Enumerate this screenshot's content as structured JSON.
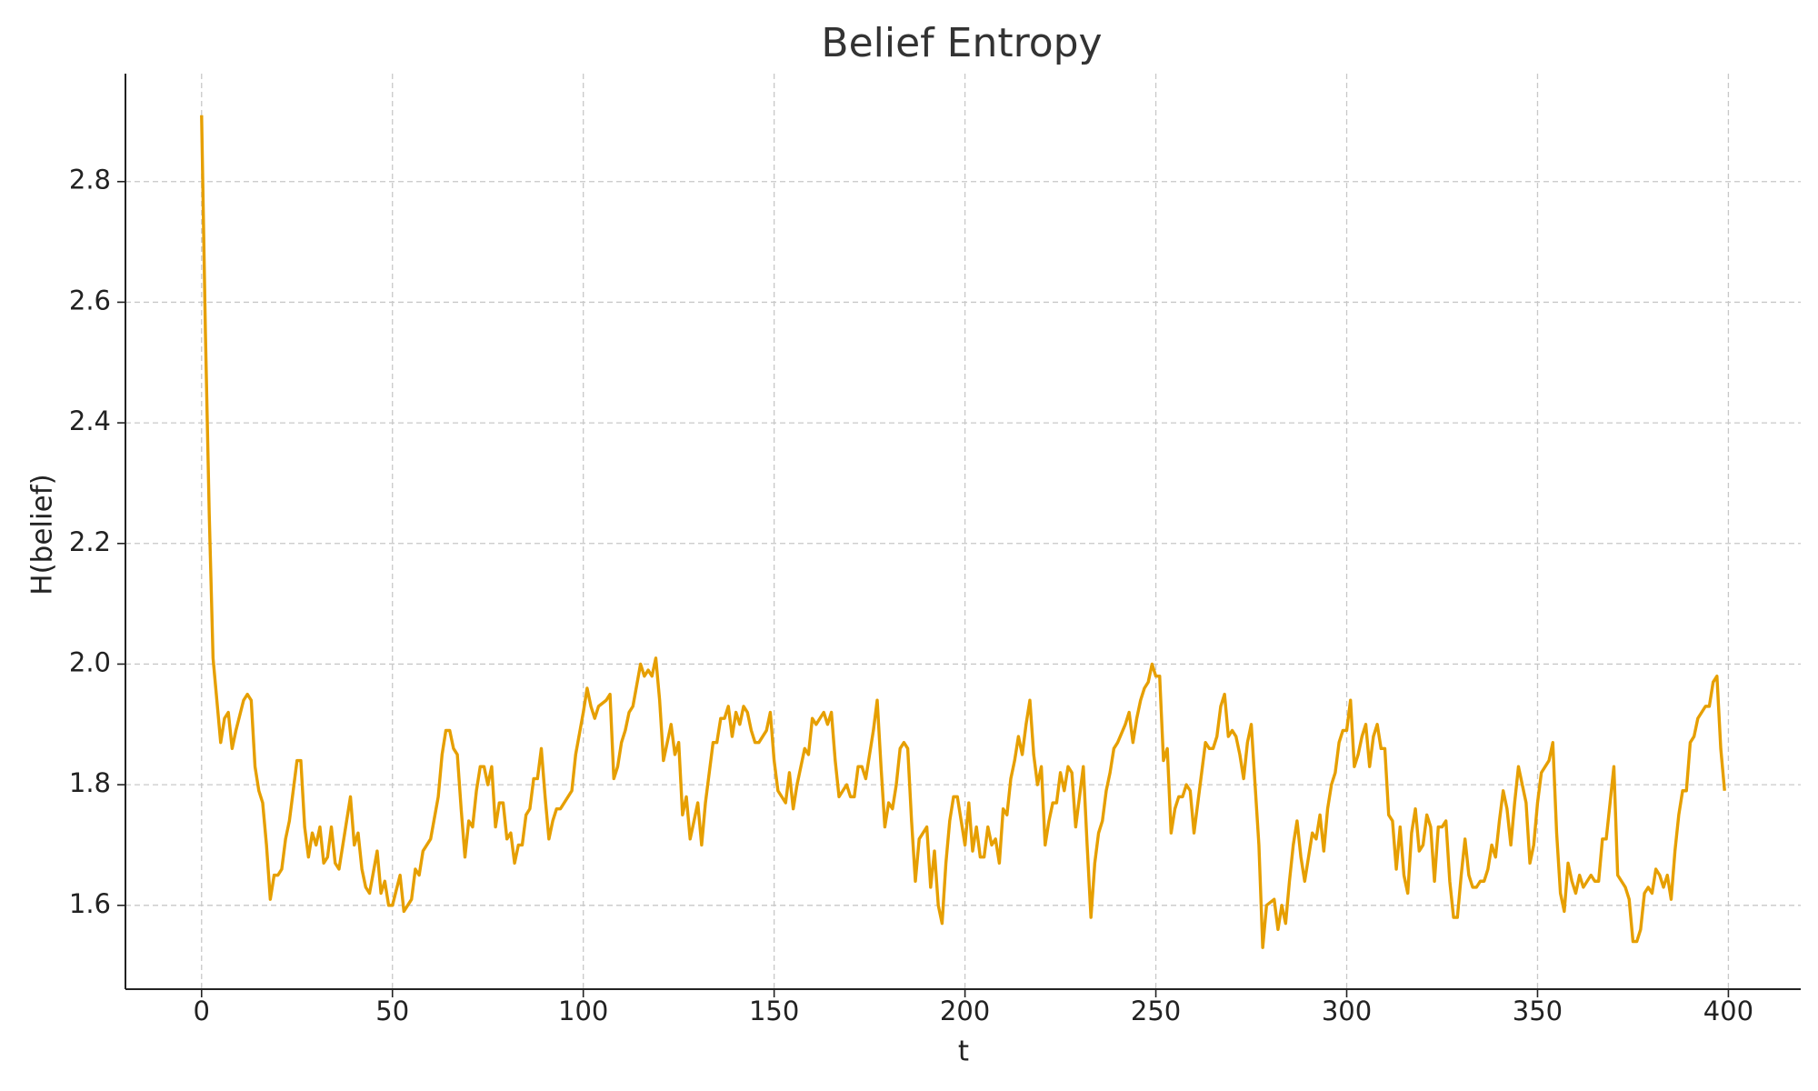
{
  "chart_data": {
    "type": "line",
    "title": "Belief Entropy",
    "x_label": "t",
    "y_label": "H(belief)",
    "color": "#e69f00",
    "grid": true,
    "xlim": [
      -19.95,
      418.95
    ],
    "ylim": [
      1.461,
      2.979
    ],
    "xticks": [
      0,
      50,
      100,
      150,
      200,
      250,
      300,
      350,
      400
    ],
    "yticks": [
      1.6,
      1.8,
      {
        "value": 2,
        "label": "2.0"
      },
      2.2,
      2.4,
      2.6,
      2.8
    ],
    "x": [
      0,
      1,
      2,
      3,
      5,
      6,
      7,
      8,
      9,
      11,
      12,
      13,
      14,
      15,
      16,
      17,
      18,
      19,
      20,
      21,
      22,
      23,
      24,
      25,
      26,
      27,
      28,
      29,
      30,
      31,
      32,
      33,
      34,
      35,
      36,
      38,
      39,
      40,
      41,
      42,
      43,
      44,
      46,
      47,
      48,
      49,
      50,
      52,
      53,
      54,
      55,
      56,
      57,
      58,
      60,
      62,
      63,
      64,
      65,
      66,
      67,
      68,
      69,
      70,
      71,
      72,
      73,
      74,
      75,
      76,
      77,
      78,
      79,
      80,
      81,
      82,
      83,
      84,
      85,
      86,
      87,
      88,
      89,
      90,
      91,
      92,
      93,
      94,
      96,
      97,
      98,
      100,
      101,
      102,
      103,
      104,
      106,
      107,
      108,
      109,
      110,
      111,
      112,
      113,
      115,
      116,
      117,
      118,
      119,
      120,
      121,
      123,
      124,
      125,
      126,
      127,
      128,
      130,
      131,
      132,
      133,
      134,
      135,
      136,
      137,
      138,
      139,
      140,
      141,
      142,
      143,
      144,
      145,
      146,
      147,
      148,
      149,
      150,
      151,
      152,
      153,
      154,
      155,
      156,
      158,
      159,
      160,
      161,
      163,
      164,
      165,
      166,
      167,
      168,
      169,
      170,
      171,
      172,
      173,
      174,
      176,
      177,
      178,
      179,
      180,
      181,
      182,
      183,
      184,
      185,
      186,
      187,
      188,
      189,
      190,
      191,
      192,
      193,
      194,
      195,
      196,
      197,
      198,
      199,
      200,
      201,
      202,
      203,
      204,
      205,
      206,
      207,
      208,
      209,
      210,
      211,
      212,
      213,
      214,
      215,
      216,
      217,
      218,
      219,
      220,
      221,
      222,
      223,
      224,
      225,
      226,
      227,
      228,
      229,
      230,
      231,
      232,
      233,
      234,
      235,
      236,
      237,
      238,
      239,
      240,
      242,
      243,
      244,
      245,
      246,
      247,
      248,
      249,
      250,
      251,
      252,
      253,
      254,
      255,
      256,
      257,
      258,
      259,
      260,
      261,
      262,
      263,
      264,
      265,
      266,
      267,
      268,
      269,
      270,
      271,
      272,
      273,
      274,
      275,
      276,
      277,
      278,
      279,
      281,
      282,
      283,
      284,
      285,
      286,
      287,
      288,
      289,
      290,
      291,
      292,
      293,
      294,
      295,
      296,
      297,
      298,
      299,
      300,
      301,
      302,
      303,
      304,
      305,
      306,
      307,
      308,
      309,
      310,
      311,
      312,
      313,
      314,
      315,
      316,
      317,
      318,
      319,
      320,
      321,
      322,
      323,
      324,
      325,
      326,
      327,
      328,
      329,
      330,
      331,
      332,
      333,
      334,
      335,
      336,
      337,
      338,
      339,
      340,
      341,
      342,
      343,
      344,
      345,
      346,
      347,
      348,
      349,
      350,
      351,
      352,
      353,
      354,
      355,
      356,
      357,
      358,
      359,
      360,
      361,
      362,
      363,
      364,
      365,
      366,
      367,
      368,
      369,
      370,
      371,
      372,
      373,
      374,
      375,
      376,
      377,
      378,
      379,
      380,
      381,
      382,
      383,
      384,
      385,
      386,
      387,
      388,
      389,
      390,
      391,
      392,
      393,
      394,
      395,
      396,
      397,
      398,
      399
    ],
    "values": [
      2.91,
      2.55,
      2.25,
      2.01,
      1.87,
      1.91,
      1.92,
      1.86,
      1.89,
      1.94,
      1.95,
      1.94,
      1.83,
      1.79,
      1.77,
      1.7,
      1.61,
      1.65,
      1.65,
      1.66,
      1.71,
      1.74,
      1.79,
      1.84,
      1.84,
      1.73,
      1.68,
      1.72,
      1.7,
      1.73,
      1.67,
      1.68,
      1.73,
      1.67,
      1.66,
      1.74,
      1.78,
      1.7,
      1.72,
      1.66,
      1.63,
      1.62,
      1.69,
      1.62,
      1.64,
      1.6,
      1.6,
      1.65,
      1.59,
      1.6,
      1.61,
      1.66,
      1.65,
      1.69,
      1.71,
      1.78,
      1.85,
      1.89,
      1.89,
      1.86,
      1.85,
      1.76,
      1.68,
      1.74,
      1.73,
      1.79,
      1.83,
      1.83,
      1.8,
      1.83,
      1.73,
      1.77,
      1.77,
      1.71,
      1.72,
      1.67,
      1.7,
      1.7,
      1.75,
      1.76,
      1.81,
      1.81,
      1.86,
      1.78,
      1.71,
      1.74,
      1.76,
      1.76,
      1.78,
      1.79,
      1.85,
      1.92,
      1.96,
      1.93,
      1.91,
      1.93,
      1.94,
      1.95,
      1.81,
      1.83,
      1.87,
      1.89,
      1.92,
      1.93,
      2.0,
      1.98,
      1.99,
      1.98,
      2.01,
      1.94,
      1.84,
      1.9,
      1.85,
      1.87,
      1.75,
      1.78,
      1.71,
      1.77,
      1.7,
      1.77,
      1.82,
      1.87,
      1.87,
      1.91,
      1.91,
      1.93,
      1.88,
      1.92,
      1.9,
      1.93,
      1.92,
      1.89,
      1.87,
      1.87,
      1.88,
      1.89,
      1.92,
      1.84,
      1.79,
      1.78,
      1.77,
      1.82,
      1.76,
      1.8,
      1.86,
      1.85,
      1.91,
      1.9,
      1.92,
      1.9,
      1.92,
      1.84,
      1.78,
      1.79,
      1.8,
      1.78,
      1.78,
      1.83,
      1.83,
      1.81,
      1.89,
      1.94,
      1.83,
      1.73,
      1.77,
      1.76,
      1.8,
      1.86,
      1.87,
      1.86,
      1.74,
      1.64,
      1.71,
      1.72,
      1.73,
      1.63,
      1.69,
      1.6,
      1.57,
      1.67,
      1.74,
      1.78,
      1.78,
      1.74,
      1.7,
      1.77,
      1.69,
      1.73,
      1.68,
      1.68,
      1.73,
      1.7,
      1.71,
      1.67,
      1.76,
      1.75,
      1.81,
      1.84,
      1.88,
      1.85,
      1.9,
      1.94,
      1.85,
      1.8,
      1.83,
      1.7,
      1.74,
      1.77,
      1.77,
      1.82,
      1.79,
      1.83,
      1.82,
      1.73,
      1.78,
      1.83,
      1.7,
      1.58,
      1.67,
      1.72,
      1.74,
      1.79,
      1.82,
      1.86,
      1.87,
      1.9,
      1.92,
      1.87,
      1.91,
      1.94,
      1.96,
      1.97,
      2.0,
      1.98,
      1.98,
      1.84,
      1.86,
      1.72,
      1.76,
      1.78,
      1.78,
      1.8,
      1.79,
      1.72,
      1.77,
      1.82,
      1.87,
      1.86,
      1.86,
      1.88,
      1.93,
      1.95,
      1.88,
      1.89,
      1.88,
      1.85,
      1.81,
      1.87,
      1.9,
      1.8,
      1.7,
      1.53,
      1.6,
      1.61,
      1.56,
      1.6,
      1.57,
      1.64,
      1.7,
      1.74,
      1.68,
      1.64,
      1.68,
      1.72,
      1.71,
      1.75,
      1.69,
      1.76,
      1.8,
      1.82,
      1.87,
      1.89,
      1.89,
      1.94,
      1.83,
      1.85,
      1.88,
      1.9,
      1.83,
      1.88,
      1.9,
      1.86,
      1.86,
      1.75,
      1.74,
      1.66,
      1.73,
      1.65,
      1.62,
      1.72,
      1.76,
      1.69,
      1.7,
      1.75,
      1.73,
      1.64,
      1.73,
      1.73,
      1.74,
      1.64,
      1.58,
      1.58,
      1.65,
      1.71,
      1.65,
      1.63,
      1.63,
      1.64,
      1.64,
      1.66,
      1.7,
      1.68,
      1.74,
      1.79,
      1.76,
      1.7,
      1.77,
      1.83,
      1.8,
      1.77,
      1.67,
      1.7,
      1.77,
      1.82,
      1.83,
      1.84,
      1.87,
      1.72,
      1.62,
      1.59,
      1.67,
      1.64,
      1.62,
      1.65,
      1.63,
      1.64,
      1.65,
      1.64,
      1.64,
      1.71,
      1.71,
      1.77,
      1.83,
      1.65,
      1.64,
      1.63,
      1.61,
      1.54,
      1.54,
      1.56,
      1.62,
      1.63,
      1.62,
      1.66,
      1.65,
      1.63,
      1.65,
      1.61,
      1.69,
      1.75,
      1.79,
      1.79,
      1.87,
      1.88,
      1.91,
      1.92,
      1.93,
      1.93,
      1.97,
      1.98,
      1.86,
      1.79
    ]
  }
}
